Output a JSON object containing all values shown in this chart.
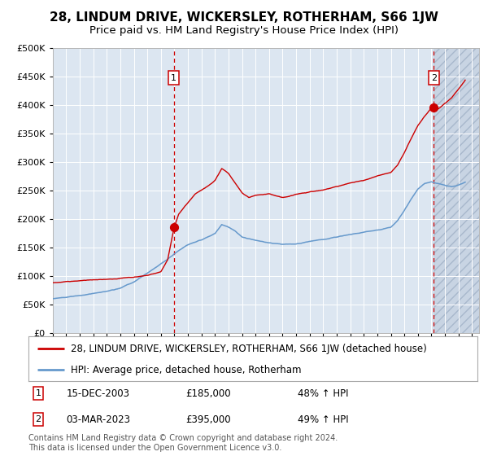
{
  "title": "28, LINDUM DRIVE, WICKERSLEY, ROTHERHAM, S66 1JW",
  "subtitle": "Price paid vs. HM Land Registry's House Price Index (HPI)",
  "legend_line1": "28, LINDUM DRIVE, WICKERSLEY, ROTHERHAM, S66 1JW (detached house)",
  "legend_line2": "HPI: Average price, detached house, Rotherham",
  "annotation1_date": "15-DEC-2003",
  "annotation1_price": "£185,000",
  "annotation1_hpi": "48% ↑ HPI",
  "annotation2_date": "03-MAR-2023",
  "annotation2_price": "£395,000",
  "annotation2_hpi": "49% ↑ HPI",
  "footer": "Contains HM Land Registry data © Crown copyright and database right 2024.\nThis data is licensed under the Open Government Licence v3.0.",
  "hpi_color": "#6699cc",
  "price_color": "#cc0000",
  "point_color": "#cc0000",
  "vline_color": "#cc0000",
  "plot_bg_color": "#dce6f1",
  "ylim": [
    0,
    500000
  ],
  "xlim_start": 1995.0,
  "xlim_end": 2026.5,
  "sale1_x": 2003.96,
  "sale1_y": 185000,
  "sale2_x": 2023.17,
  "sale2_y": 395000,
  "title_fontsize": 11,
  "subtitle_fontsize": 9.5,
  "axis_fontsize": 8,
  "legend_fontsize": 8.5,
  "annotation_fontsize": 8.5,
  "footer_fontsize": 7
}
